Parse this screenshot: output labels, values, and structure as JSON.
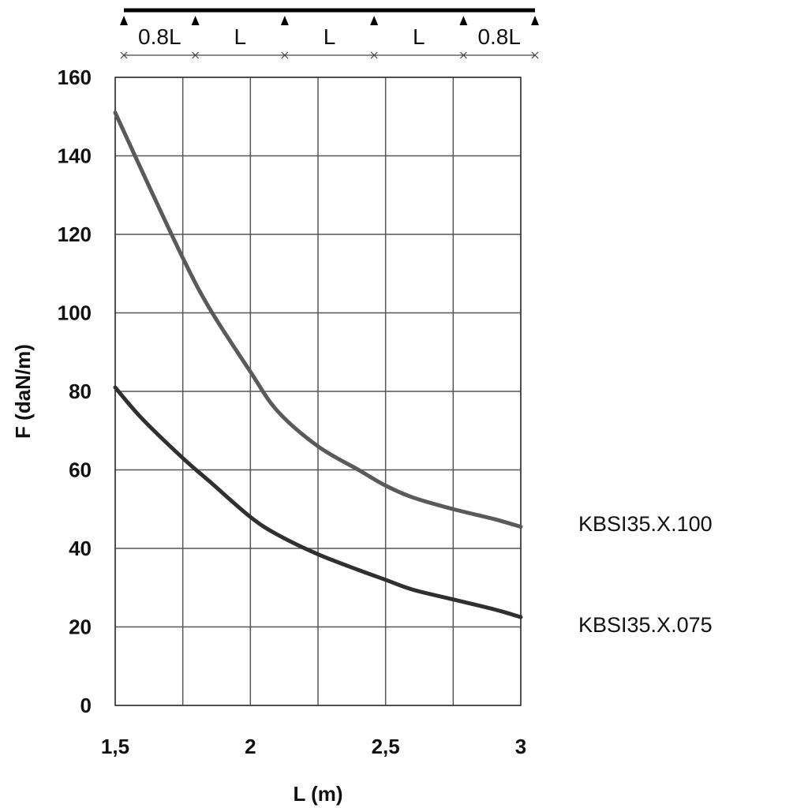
{
  "chart_data": {
    "type": "line",
    "xlabel": "L (m)",
    "ylabel": "F (daN/m)",
    "xlim": [
      1.5,
      3
    ],
    "ylim": [
      0,
      160
    ],
    "x_ticks": [
      1.5,
      2,
      2.5,
      3
    ],
    "x_tick_labels": [
      "1,5",
      "2",
      "2,5",
      "3"
    ],
    "y_ticks": [
      0,
      20,
      40,
      60,
      80,
      100,
      120,
      140,
      160
    ],
    "y_tick_labels": [
      "0",
      "20",
      "40",
      "60",
      "80",
      "100",
      "120",
      "140",
      "160"
    ],
    "grid": true,
    "grid_x_step": 0.25,
    "grid_y_step": 20,
    "series": [
      {
        "name": "KBSI35.X.100",
        "color": "#5a5a5a",
        "x": [
          1.5,
          1.6,
          1.75,
          1.85,
          2.0,
          2.1,
          2.25,
          2.4,
          2.5,
          2.6,
          2.75,
          2.9,
          3.0
        ],
        "y": [
          151,
          136,
          114,
          101,
          85,
          75,
          66,
          60,
          56,
          53,
          50,
          47.5,
          45.5
        ]
      },
      {
        "name": "KBSI35.X.075",
        "color": "#303030",
        "x": [
          1.5,
          1.6,
          1.75,
          1.85,
          2.0,
          2.1,
          2.25,
          2.4,
          2.5,
          2.6,
          2.75,
          2.9,
          3.0
        ],
        "y": [
          81,
          73,
          63,
          57,
          48,
          43.5,
          38.5,
          34.5,
          32,
          29.5,
          27,
          24.5,
          22.5
        ]
      }
    ]
  },
  "beam_diagram": {
    "spans": [
      "0.8L",
      "L",
      "L",
      "L",
      "0.8L"
    ],
    "span_ratios": [
      0.8,
      1,
      1,
      1,
      0.8
    ],
    "beam_color": "#000000"
  }
}
